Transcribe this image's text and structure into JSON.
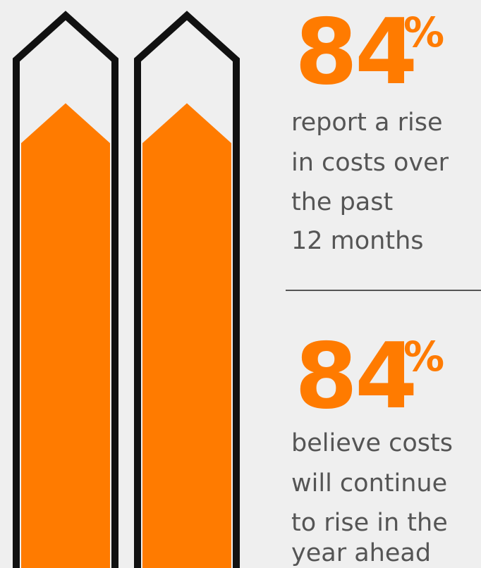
{
  "stats": [
    {
      "value": 84,
      "unit": "%",
      "description": [
        "report a rise",
        "in costs over",
        "the past",
        "12 months"
      ]
    },
    {
      "value": 84,
      "unit": "%",
      "description": [
        "believe costs",
        "will continue",
        "to rise in the",
        "year ahead"
      ]
    }
  ]
}
